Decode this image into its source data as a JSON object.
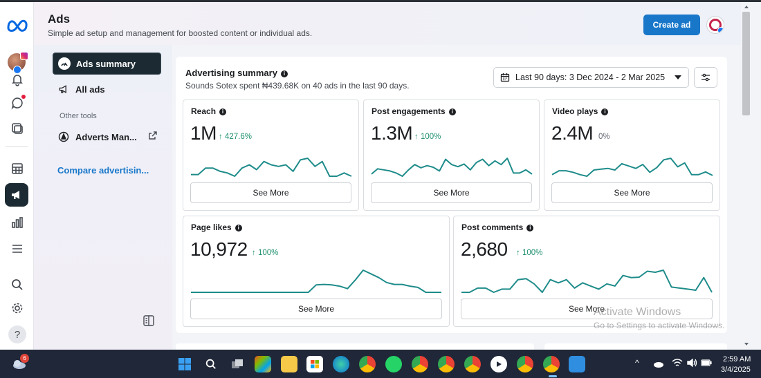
{
  "header": {
    "title": "Ads",
    "subtitle": "Simple ad setup and management for boosted content or individual ads.",
    "create_label": "Create ad"
  },
  "nav": {
    "items": [
      {
        "label": "Ads summary",
        "icon": "ads-summary-icon"
      },
      {
        "label": "All ads",
        "icon": "megaphone-icon"
      }
    ],
    "other_tools_label": "Other tools",
    "other_tools": [
      {
        "label": "Adverts Man...",
        "icon": "adverts-manager-icon"
      }
    ],
    "compare_label": "Compare advertisin..."
  },
  "summary": {
    "title": "Advertising summary",
    "subtitle": "Sounds Sotex spent ₦439.68K on 40 ads in the last 90 days.",
    "date_range": "Last 90 days: 3 Dec 2024 - 2 Mar 2025"
  },
  "metrics": [
    {
      "title": "Reach",
      "value": "1M",
      "change": "↑ 427.6%",
      "see_more": "See More",
      "trend": [
        2,
        2,
        4,
        4,
        3,
        2.5,
        1.5,
        4,
        5,
        3.5,
        6,
        5,
        4.5,
        5,
        3,
        6.5,
        7,
        4.5,
        6,
        1.5,
        1.5,
        2.5,
        1.5
      ]
    },
    {
      "title": "Post engagements",
      "value": "1.3M",
      "change": "↑ 100%",
      "see_more": "See More",
      "trend": [
        2,
        3,
        2.8,
        2.6,
        2.2,
        1.6,
        2.8,
        3.8,
        3.2,
        3.6,
        3.3,
        2.6,
        4.8,
        3.8,
        3.4,
        3.9,
        2.8,
        4.2,
        4.8,
        3.6,
        4.5,
        3.8,
        5,
        2.2,
        2.2,
        2.8,
        2
      ]
    },
    {
      "title": "Video plays",
      "value": "2.4M",
      "change": "0%",
      "see_more": "See More",
      "trend": [
        2,
        3,
        3,
        2.6,
        2,
        1.6,
        3.2,
        3.4,
        3.6,
        3.2,
        4.8,
        4.2,
        3.6,
        4.6,
        2.6,
        3.8,
        5.8,
        6.2,
        4,
        5,
        2,
        2,
        2.7,
        1.8
      ]
    },
    {
      "title": "Page likes",
      "value": "10,972",
      "change": "↑ 100%",
      "see_more": "See More",
      "trend": [
        0,
        0,
        0,
        0,
        0,
        0,
        0,
        0,
        0,
        0,
        0,
        0,
        0,
        0,
        0,
        0,
        3,
        3.2,
        3,
        2.5,
        1.5,
        5,
        9,
        7.5,
        6,
        4,
        3.2,
        3.2,
        2.5,
        2,
        0,
        0,
        0
      ]
    },
    {
      "title": "Post comments",
      "value": "2,680",
      "change": "↑ 100%",
      "see_more": "See More",
      "trend": [
        0,
        0,
        2,
        2,
        0,
        1.5,
        1.5,
        6,
        6.5,
        4,
        0,
        6,
        4.5,
        6,
        2,
        4.5,
        3,
        1.5,
        4,
        3,
        8,
        7,
        7.2,
        10,
        9.5,
        10.5,
        2.5,
        2,
        1.5,
        1,
        7,
        0
      ]
    }
  ],
  "watermark": {
    "line1": "Activate Windows",
    "line2": "Go to Settings to activate Windows."
  },
  "taskbar": {
    "weather_badge": "6",
    "time": "2:59 AM",
    "date": "3/4/2025"
  },
  "colors": {
    "accent": "#1877c9",
    "spark": "#1e8c8a",
    "positive": "#1d8f6d",
    "nav_selected": "#1c2b33"
  }
}
